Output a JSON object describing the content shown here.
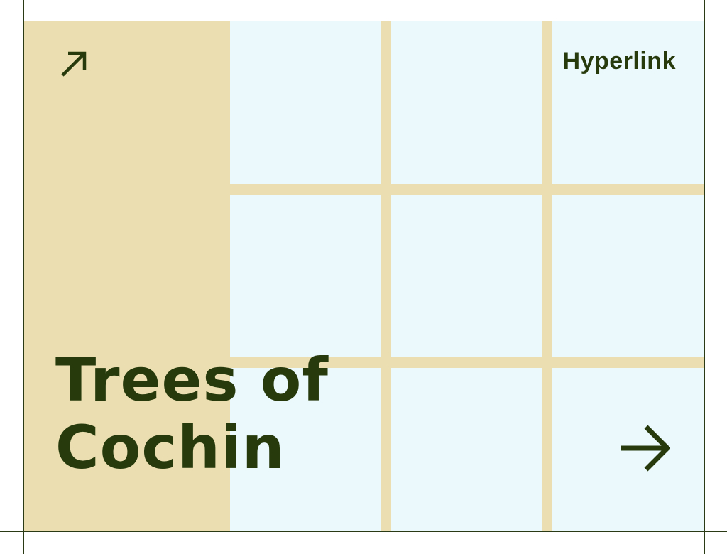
{
  "card": {
    "link_label": "Hyperlink",
    "title_line1": "Trees of",
    "title_line2": "Cochin",
    "top_icon": "arrow-up-right-icon",
    "bottom_icon": "arrow-right-icon"
  },
  "colors": {
    "sand": "#ebdfb1",
    "sky": "#ebf9fd",
    "ink": "#263a0c"
  }
}
